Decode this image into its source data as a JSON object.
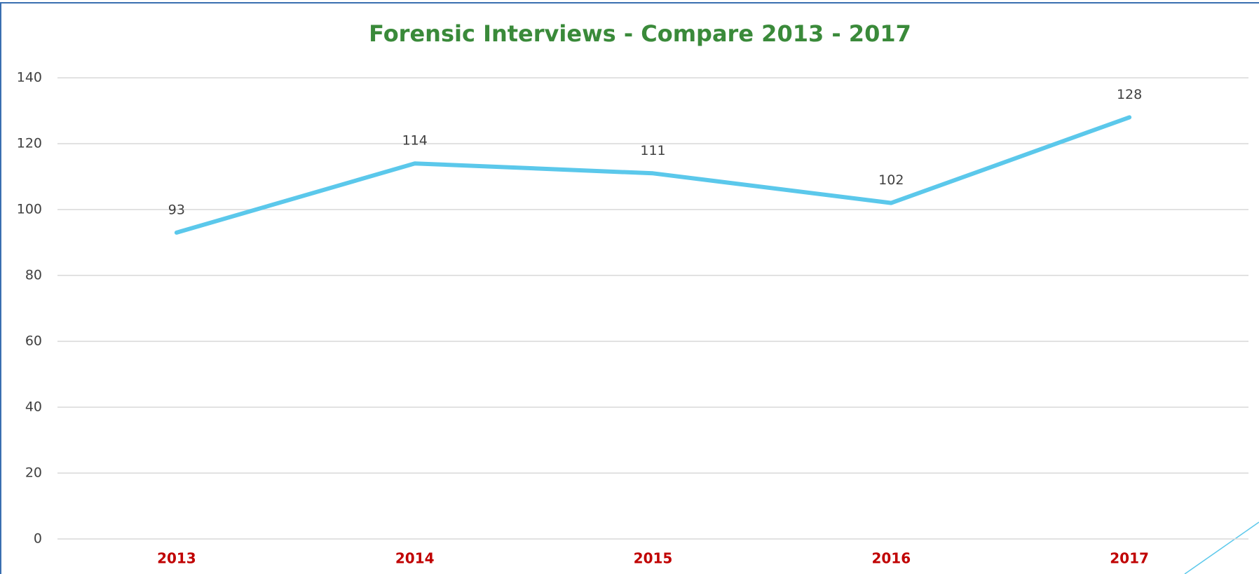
{
  "chart_data": {
    "type": "line",
    "title": "Forensic Interviews - Compare 2013 - 2017",
    "categories": [
      "2013",
      "2014",
      "2015",
      "2016",
      "2017"
    ],
    "values": [
      93,
      114,
      111,
      102,
      128
    ],
    "color": "#5bc8eb",
    "ylim": [
      0,
      140
    ],
    "yticks": [
      0,
      20,
      40,
      60,
      80,
      100,
      120,
      140
    ],
    "grid": true
  }
}
